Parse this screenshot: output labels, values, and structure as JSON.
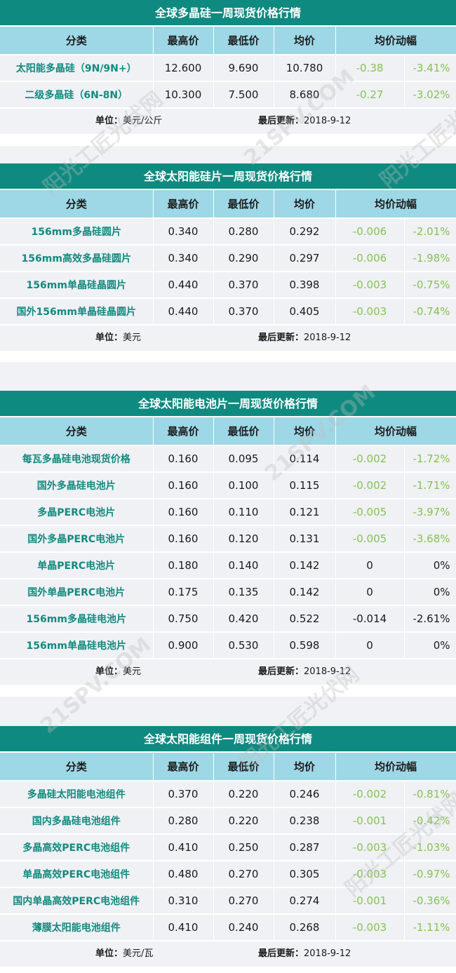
{
  "headers": [
    "分类",
    "最高价",
    "最低价",
    "均价",
    "均价动幅"
  ],
  "sections": [
    {
      "title": "全球多晶硅一周现货价格行情",
      "rows": [
        [
          "太阳能多晶硅（9N/9N+）",
          "12.600",
          "9.690",
          "10.780",
          "-0.38",
          "-3.41%"
        ],
        [
          "二级多晶硅（6N-8N）",
          "10.300",
          "7.500",
          "8.680",
          "-0.27",
          "-3.02%"
        ]
      ],
      "unit_label": "单位：",
      "unit": "美元/公斤",
      "update_label": "最后更新：",
      "update": "2018-9-12"
    },
    {
      "title": "全球太阳能硅片一周现货价格行情",
      "rows": [
        [
          "156mm多晶硅圆片",
          "0.340",
          "0.280",
          "0.292",
          "-0.006",
          "-2.01%"
        ],
        [
          "156mm高效多晶硅圆片",
          "0.340",
          "0.290",
          "0.297",
          "-0.006",
          "-1.98%"
        ],
        [
          "156mm单晶硅晶圆片",
          "0.440",
          "0.370",
          "0.398",
          "-0.003",
          "-0.75%"
        ],
        [
          "国外156mm单晶硅晶圆片",
          "0.440",
          "0.370",
          "0.405",
          "-0.003",
          "-0.74%"
        ]
      ],
      "unit_label": "单位：",
      "unit": "美元",
      "update_label": "最后更新：",
      "update": "2018-9-12"
    },
    {
      "title": "全球太阳能电池片一周现货价格行情",
      "rows": [
        [
          "每瓦多晶硅电池现货价格",
          "0.160",
          "0.095",
          "0.114",
          "-0.002",
          "-1.72%"
        ],
        [
          "国外多晶硅电池片",
          "0.160",
          "0.100",
          "0.115",
          "-0.002",
          "-1.71%"
        ],
        [
          "多晶PERC电池片",
          "0.160",
          "0.110",
          "0.121",
          "-0.005",
          "-3.97%"
        ],
        [
          "国外多晶PERC电池片",
          "0.160",
          "0.120",
          "0.131",
          "-0.005",
          "-3.68%"
        ],
        [
          "单晶PERC电池片",
          "0.180",
          "0.140",
          "0.142",
          "0",
          "0%"
        ],
        [
          "国外单晶PERC电池片",
          "0.175",
          "0.135",
          "0.142",
          "0",
          "0%"
        ],
        [
          "156mm多晶硅电池片",
          "0.750",
          "0.420",
          "0.522",
          "-0.014",
          "-2.61%"
        ],
        [
          "156mm单晶硅电池片",
          "0.900",
          "0.530",
          "0.598",
          "0",
          "0%"
        ]
      ],
      "unit_label": "单位：",
      "unit": "美元",
      "update_label": "最后更新：",
      "update": "2018-9-12"
    },
    {
      "title": "全球太阳能组件一周现货价格行情",
      "rows": [
        [
          "多晶硅太阳能电池组件",
          "0.370",
          "0.220",
          "0.246",
          "-0.002",
          "-0.81%"
        ],
        [
          "国内多晶硅电池组件",
          "0.280",
          "0.220",
          "0.238",
          "-0.001",
          "-0.42%"
        ],
        [
          "多晶高效PERC电池组件",
          "0.410",
          "0.250",
          "0.287",
          "-0.003",
          "-1.03%"
        ],
        [
          "单晶高效PERC电池组件",
          "0.480",
          "0.270",
          "0.305",
          "-0.003",
          "-0.97%"
        ],
        [
          "国内单晶高效PERC电池组件",
          "0.310",
          "0.270",
          "0.274",
          "-0.001",
          "-0.36%"
        ],
        [
          "薄膜太阳能电池组件",
          "0.410",
          "0.240",
          "0.268",
          "-0.003",
          "-1.11%"
        ]
      ],
      "unit_label": "单位：",
      "unit": "美元/瓦",
      "update_label": "最后更新：",
      "update": "2018-9-12"
    }
  ],
  "watermark": [
    "阳光工匠光伏网",
    "21SPV.COM"
  ],
  "colors": {
    "title_bg": "#0f8a80",
    "header_bg": "#9ed7e6",
    "category_text": "#138a80",
    "change_green": "#86c253"
  }
}
